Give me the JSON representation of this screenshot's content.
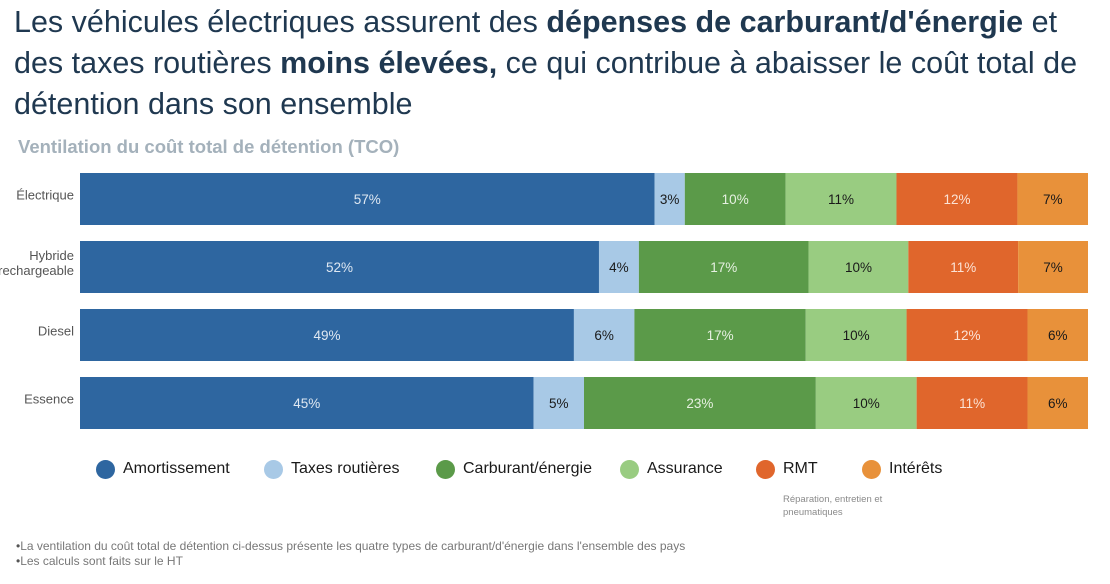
{
  "headline": {
    "part1": "Les véhicules électriques assurent des ",
    "bold1": "dépenses de carburant/d'énergie",
    "part2": " et des taxes routières ",
    "bold2": "moins élevées,",
    "part3": " ce qui contribue à abaisser le coût total de détention dans son ensemble"
  },
  "chart_data": {
    "type": "bar",
    "orientation": "horizontal-stacked-100",
    "title": "Ventilation du coût total de détention (TCO)",
    "categories": [
      [
        "Électrique"
      ],
      [
        "Hybride",
        "rechargeable"
      ],
      [
        "Diesel"
      ],
      [
        "Essence"
      ]
    ],
    "series": [
      {
        "name": "Amortissement",
        "color": "#2e66a0",
        "text_color": "#dfe8f2",
        "values": [
          57,
          52,
          49,
          45
        ]
      },
      {
        "name": "Taxes routières",
        "color": "#a8c9e6",
        "text_color": "#1a1a1a",
        "values": [
          3,
          4,
          6,
          5
        ]
      },
      {
        "name": "Carburant/énergie",
        "color": "#5b9a49",
        "text_color": "#e6f0e1",
        "values": [
          10,
          17,
          17,
          23
        ]
      },
      {
        "name": "Assurance",
        "color": "#99cc81",
        "text_color": "#1a1a1a",
        "values": [
          11,
          10,
          10,
          10
        ]
      },
      {
        "name": "RMT",
        "color": "#e0662c",
        "text_color": "#fbe3d6",
        "values": [
          12,
          11,
          12,
          11
        ]
      },
      {
        "name": "Intérêts",
        "color": "#e8913a",
        "text_color": "#1a1a1a",
        "values": [
          7,
          7,
          6,
          6
        ]
      }
    ],
    "value_suffix": "%"
  },
  "legend": {
    "rmt_note": "Réparation, entretien et pneumatiques"
  },
  "footnotes": [
    "La ventilation du coût total de détention ci-dessus présente les quatre types de carburant/d'énergie dans l'ensemble des pays",
    "Les calculs sont faits sur le HT"
  ]
}
